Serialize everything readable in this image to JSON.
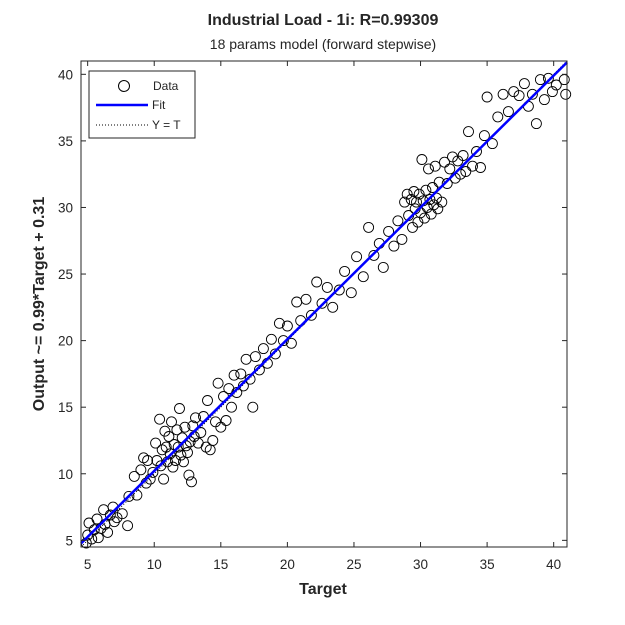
{
  "chart_data": {
    "type": "scatter",
    "title": "Industrial Load - 1i: R=0.99309",
    "subtitle": "18 params model (forward stepwise)",
    "xlabel": "Target",
    "ylabel": "Output ~= 0.99*Target + 0.31",
    "xlim": [
      4.5,
      41
    ],
    "ylim": [
      4.5,
      41
    ],
    "xticks": [
      5,
      10,
      15,
      20,
      25,
      30,
      35,
      40
    ],
    "yticks": [
      5,
      10,
      15,
      20,
      25,
      30,
      35,
      40
    ],
    "grid": false,
    "legend_position": "top-left",
    "legend": [
      {
        "label": "Data",
        "marker": "circle",
        "color": "#000000"
      },
      {
        "label": "Fit",
        "line": "solid",
        "color": "#0000ff"
      },
      {
        "label": "Y = T",
        "line": "dotted",
        "color": "#000000"
      }
    ],
    "fit": {
      "slope": 0.99,
      "intercept": 0.31
    },
    "series": [
      {
        "name": "Data",
        "points": [
          [
            4.9,
            4.8
          ],
          [
            5.0,
            5.4
          ],
          [
            5.1,
            6.3
          ],
          [
            5.3,
            5.1
          ],
          [
            5.5,
            5.8
          ],
          [
            5.7,
            6.6
          ],
          [
            5.8,
            5.2
          ],
          [
            6.0,
            5.9
          ],
          [
            6.2,
            7.3
          ],
          [
            6.3,
            6.2
          ],
          [
            6.5,
            5.6
          ],
          [
            6.7,
            6.9
          ],
          [
            6.9,
            7.5
          ],
          [
            7.0,
            6.4
          ],
          [
            7.2,
            6.7
          ],
          [
            7.6,
            7.0
          ],
          [
            8.0,
            6.1
          ],
          [
            8.1,
            8.3
          ],
          [
            8.5,
            9.8
          ],
          [
            8.7,
            8.4
          ],
          [
            9.0,
            10.3
          ],
          [
            9.2,
            11.2
          ],
          [
            9.4,
            9.3
          ],
          [
            9.5,
            11.0
          ],
          [
            9.7,
            9.6
          ],
          [
            9.9,
            10.1
          ],
          [
            10.1,
            12.3
          ],
          [
            10.2,
            11.0
          ],
          [
            10.4,
            14.1
          ],
          [
            10.5,
            10.6
          ],
          [
            10.6,
            11.8
          ],
          [
            10.7,
            9.6
          ],
          [
            10.8,
            13.2
          ],
          [
            10.9,
            12.0
          ],
          [
            11.0,
            10.9
          ],
          [
            11.1,
            12.8
          ],
          [
            11.2,
            11.5
          ],
          [
            11.3,
            13.9
          ],
          [
            11.4,
            10.5
          ],
          [
            11.5,
            12.2
          ],
          [
            11.6,
            11.0
          ],
          [
            11.7,
            13.3
          ],
          [
            11.8,
            12.0
          ],
          [
            11.9,
            14.9
          ],
          [
            12.0,
            11.4
          ],
          [
            12.1,
            12.7
          ],
          [
            12.2,
            10.9
          ],
          [
            12.3,
            13.5
          ],
          [
            12.4,
            12.1
          ],
          [
            12.5,
            11.6
          ],
          [
            12.6,
            9.9
          ],
          [
            12.7,
            12.4
          ],
          [
            12.8,
            9.4
          ],
          [
            12.9,
            13.6
          ],
          [
            13.0,
            12.8
          ],
          [
            13.1,
            14.2
          ],
          [
            13.3,
            12.3
          ],
          [
            13.5,
            13.1
          ],
          [
            13.7,
            14.3
          ],
          [
            13.9,
            12.0
          ],
          [
            14.0,
            15.5
          ],
          [
            14.2,
            11.8
          ],
          [
            14.4,
            12.5
          ],
          [
            14.6,
            13.9
          ],
          [
            14.8,
            16.8
          ],
          [
            15.0,
            13.5
          ],
          [
            15.2,
            15.8
          ],
          [
            15.4,
            14.0
          ],
          [
            15.6,
            16.4
          ],
          [
            15.8,
            15.0
          ],
          [
            16.0,
            17.4
          ],
          [
            16.2,
            16.1
          ],
          [
            16.5,
            17.5
          ],
          [
            16.7,
            16.6
          ],
          [
            16.9,
            18.6
          ],
          [
            17.2,
            17.1
          ],
          [
            17.4,
            15.0
          ],
          [
            17.6,
            18.8
          ],
          [
            17.9,
            17.8
          ],
          [
            18.2,
            19.4
          ],
          [
            18.5,
            18.3
          ],
          [
            18.8,
            20.1
          ],
          [
            19.1,
            19.0
          ],
          [
            19.4,
            21.3
          ],
          [
            19.7,
            20.0
          ],
          [
            20.0,
            21.1
          ],
          [
            20.3,
            19.8
          ],
          [
            20.7,
            22.9
          ],
          [
            21.0,
            21.5
          ],
          [
            21.4,
            23.1
          ],
          [
            21.8,
            21.9
          ],
          [
            22.2,
            24.4
          ],
          [
            22.6,
            22.8
          ],
          [
            23.0,
            24.0
          ],
          [
            23.4,
            22.5
          ],
          [
            23.9,
            23.8
          ],
          [
            24.3,
            25.2
          ],
          [
            24.8,
            23.6
          ],
          [
            25.2,
            26.3
          ],
          [
            25.7,
            24.8
          ],
          [
            26.1,
            28.5
          ],
          [
            26.5,
            26.4
          ],
          [
            26.9,
            27.3
          ],
          [
            27.2,
            25.5
          ],
          [
            27.6,
            28.2
          ],
          [
            28.0,
            27.1
          ],
          [
            28.3,
            29.0
          ],
          [
            28.6,
            27.6
          ],
          [
            28.8,
            30.4
          ],
          [
            29.0,
            31.0
          ],
          [
            29.1,
            29.4
          ],
          [
            29.3,
            30.6
          ],
          [
            29.4,
            28.5
          ],
          [
            29.5,
            31.2
          ],
          [
            29.6,
            29.9
          ],
          [
            29.7,
            30.4
          ],
          [
            29.8,
            28.9
          ],
          [
            29.9,
            31.0
          ],
          [
            30.0,
            29.6
          ],
          [
            30.1,
            33.6
          ],
          [
            30.2,
            30.5
          ],
          [
            30.3,
            29.2
          ],
          [
            30.4,
            31.3
          ],
          [
            30.5,
            30.0
          ],
          [
            30.6,
            32.9
          ],
          [
            30.7,
            30.6
          ],
          [
            30.8,
            29.5
          ],
          [
            30.9,
            31.5
          ],
          [
            31.0,
            30.2
          ],
          [
            31.1,
            33.1
          ],
          [
            31.2,
            30.7
          ],
          [
            31.3,
            29.9
          ],
          [
            31.4,
            31.9
          ],
          [
            31.6,
            30.4
          ],
          [
            31.8,
            33.4
          ],
          [
            32.0,
            31.8
          ],
          [
            32.2,
            32.9
          ],
          [
            32.4,
            33.8
          ],
          [
            32.6,
            32.2
          ],
          [
            32.8,
            33.5
          ],
          [
            33.0,
            32.5
          ],
          [
            33.2,
            33.9
          ],
          [
            33.4,
            32.7
          ],
          [
            33.6,
            35.7
          ],
          [
            33.9,
            33.1
          ],
          [
            34.2,
            34.2
          ],
          [
            34.5,
            33.0
          ],
          [
            34.8,
            35.4
          ],
          [
            35.0,
            38.3
          ],
          [
            35.4,
            34.8
          ],
          [
            35.8,
            36.8
          ],
          [
            36.2,
            38.5
          ],
          [
            36.6,
            37.2
          ],
          [
            37.0,
            38.7
          ],
          [
            37.4,
            38.4
          ],
          [
            37.8,
            39.3
          ],
          [
            38.1,
            37.6
          ],
          [
            38.4,
            38.5
          ],
          [
            38.7,
            36.3
          ],
          [
            39.0,
            39.6
          ],
          [
            39.3,
            38.1
          ],
          [
            39.6,
            39.7
          ],
          [
            39.9,
            38.7
          ],
          [
            40.2,
            39.2
          ],
          [
            40.8,
            39.6
          ],
          [
            40.9,
            38.5
          ]
        ]
      }
    ]
  }
}
